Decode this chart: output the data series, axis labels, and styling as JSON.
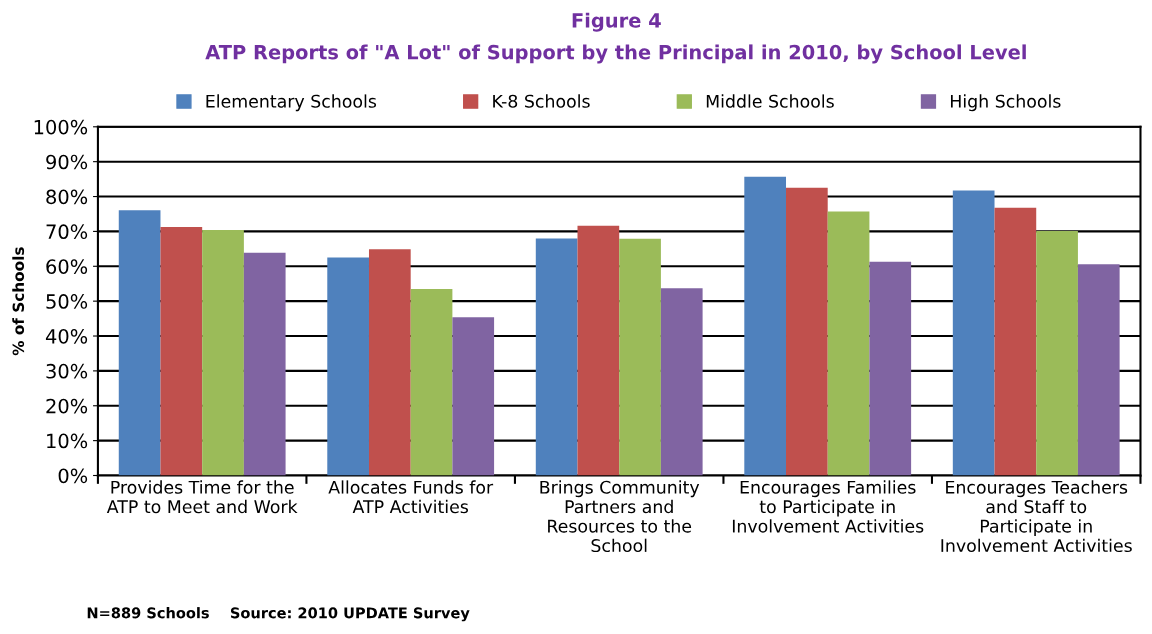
{
  "chart_data": {
    "type": "bar",
    "title": "Figure 4",
    "subtitle": "ATP Reports of \"A Lot\" of Support by the Principal in 2010, by School Level",
    "ylabel": "% of Schools",
    "categories": [
      "Provides Time for the ATP to Meet and Work",
      "Allocates Funds for ATP Activities",
      "Brings Community Partners and Resources to the School",
      "Encourages Families to Participate in Involvement Activities",
      "Encourages Teachers and Staff to Participate in Involvement Activities"
    ],
    "series": [
      {
        "name": "Elementary Schools",
        "color": "#4f81bd",
        "values": [
          76.1,
          62.5,
          68.0,
          85.7,
          81.7
        ]
      },
      {
        "name": "K-8 Schools",
        "color": "#c0504d",
        "values": [
          71.3,
          64.9,
          71.6,
          82.5,
          76.8
        ]
      },
      {
        "name": "Middle Schools",
        "color": "#9bbb59",
        "values": [
          70.4,
          53.5,
          67.9,
          75.7,
          70.1
        ]
      },
      {
        "name": "High Schools",
        "color": "#8064a2",
        "values": [
          63.9,
          45.4,
          53.7,
          61.3,
          60.6
        ]
      }
    ],
    "ylim": [
      0,
      100
    ],
    "yticks": [
      {
        "value": 0,
        "label": "0%"
      },
      {
        "value": 10,
        "label": "10%"
      },
      {
        "value": 20,
        "label": "20%"
      },
      {
        "value": 30,
        "label": "30%"
      },
      {
        "value": 40,
        "label": "40%"
      },
      {
        "value": 50,
        "label": "50%"
      },
      {
        "value": 60,
        "label": "60%"
      },
      {
        "value": 70,
        "label": "70%"
      },
      {
        "value": 80,
        "label": "80%"
      },
      {
        "value": 90,
        "label": "90%"
      },
      {
        "value": 100,
        "label": "100%"
      }
    ],
    "grid": "y",
    "legend": "top",
    "annotations": [
      "N=889 Schools    Source: 2010 UPDATE Survey"
    ]
  }
}
